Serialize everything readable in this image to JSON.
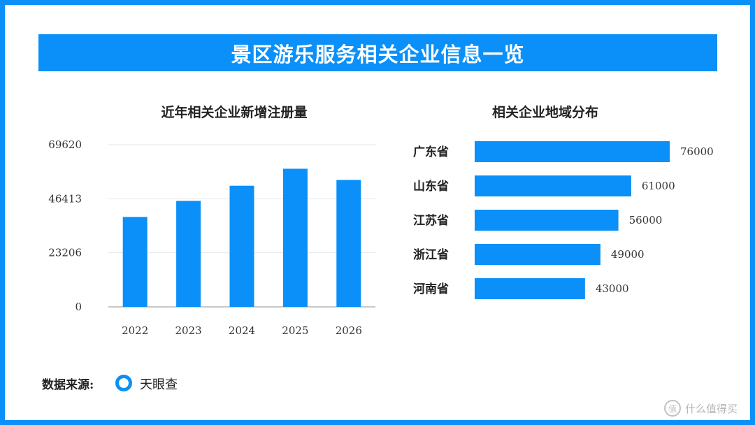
{
  "banner": {
    "title": "景区游乐服务相关企业信息一览"
  },
  "colors": {
    "accent": "#0a90f8"
  },
  "chart_data": [
    {
      "type": "bar",
      "title": "近年相关企业新增注册量",
      "categories": [
        "2022",
        "2023",
        "2024",
        "2025",
        "2026"
      ],
      "values": [
        38600,
        45500,
        52000,
        59300,
        54500
      ],
      "yticks": [
        "0",
        "23206",
        "46413",
        "69620"
      ],
      "ylim": [
        0,
        69620
      ],
      "grid": true
    },
    {
      "type": "bar",
      "orientation": "horizontal",
      "title": "相关企业地域分布",
      "categories": [
        "广东省",
        "山东省",
        "江苏省",
        "浙江省",
        "河南省"
      ],
      "values": [
        76000,
        61000,
        56000,
        49000,
        43000
      ],
      "labels": [
        "76000",
        "61000",
        "56000",
        "49000",
        "43000"
      ],
      "xlim": [
        0,
        76000
      ]
    }
  ],
  "source": {
    "label": "数据来源:",
    "name": "天眼查",
    "icon": "ring-icon"
  },
  "watermark": {
    "text": "什么值得买",
    "icon": "zhi-icon",
    "glyph": "值"
  }
}
